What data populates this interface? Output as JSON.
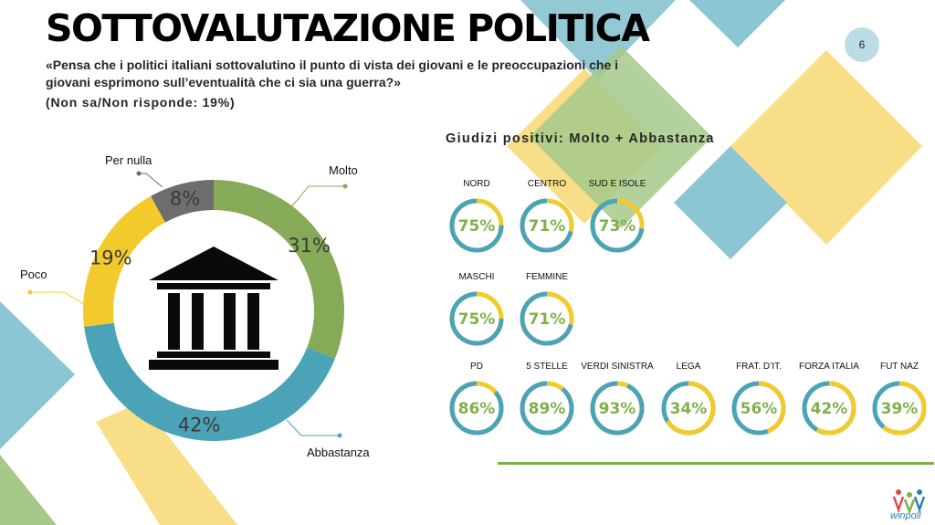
{
  "header": {
    "title": "SOTTOVALUTAZIONE POLITICA",
    "question": "«Pensa che i politici italiani sottovalutino il punto di vista dei giovani e le preoccupazioni che i giovani esprimono sull’eventualità che ci sia una guerra?»",
    "non_sa": "(Non sa/Non risponde: 19%)",
    "page_number": "6"
  },
  "subtitle": "Giudizi positivi: Molto + Abbastanza",
  "colors": {
    "molto": "#86aa57",
    "abbastanza": "#4ba3b8",
    "poco": "#f3ca2c",
    "per_nulla": "#6d6d6d",
    "gauge_teal": "#4ba3b8",
    "gauge_yellow": "#f3ca2c",
    "value_green": "#7fb04a"
  },
  "icons": {
    "center": "government-building-icon",
    "logo": "winpoll-logo"
  },
  "logo_text": "winpoll",
  "chart_data": [
    {
      "type": "pie",
      "donut": true,
      "categories": [
        "Molto",
        "Abbastanza",
        "Poco",
        "Per nulla"
      ],
      "values": [
        31,
        42,
        19,
        8
      ],
      "labels": [
        "31%",
        "42%",
        "19%",
        "8%"
      ],
      "unit": "%"
    },
    {
      "type": "pie",
      "subtype": "gauge-rings",
      "title": "Giudizi positivi: Molto + Abbastanza",
      "rows": [
        [
          {
            "label": "NORD",
            "value": 75,
            "text": "75%",
            "ring": "teal"
          },
          {
            "label": "CENTRO",
            "value": 71,
            "text": "71%",
            "ring": "teal"
          },
          {
            "label": "SUD E ISOLE",
            "value": 73,
            "text": "73%",
            "ring": "teal"
          }
        ],
        [
          {
            "label": "MASCHI",
            "value": 75,
            "text": "75%",
            "ring": "teal"
          },
          {
            "label": "FEMMINE",
            "value": 71,
            "text": "71%",
            "ring": "teal"
          }
        ],
        [
          {
            "label": "PD",
            "value": 86,
            "text": "86%",
            "ring": "teal"
          },
          {
            "label": "5 STELLE",
            "value": 89,
            "text": "89%",
            "ring": "teal"
          },
          {
            "label": "VERDI SINISTRA",
            "value": 93,
            "text": "93%",
            "ring": "teal"
          },
          {
            "label": "LEGA",
            "value": 34,
            "text": "34%",
            "ring": "yellow"
          },
          {
            "label": "FRAT. D’IT.",
            "value": 56,
            "text": "56%",
            "ring": "yellow"
          },
          {
            "label": "FORZA ITALIA",
            "value": 42,
            "text": "42%",
            "ring": "yellow"
          },
          {
            "label": "FUT NAZ",
            "value": 39,
            "text": "39%",
            "ring": "yellow"
          }
        ]
      ]
    }
  ]
}
